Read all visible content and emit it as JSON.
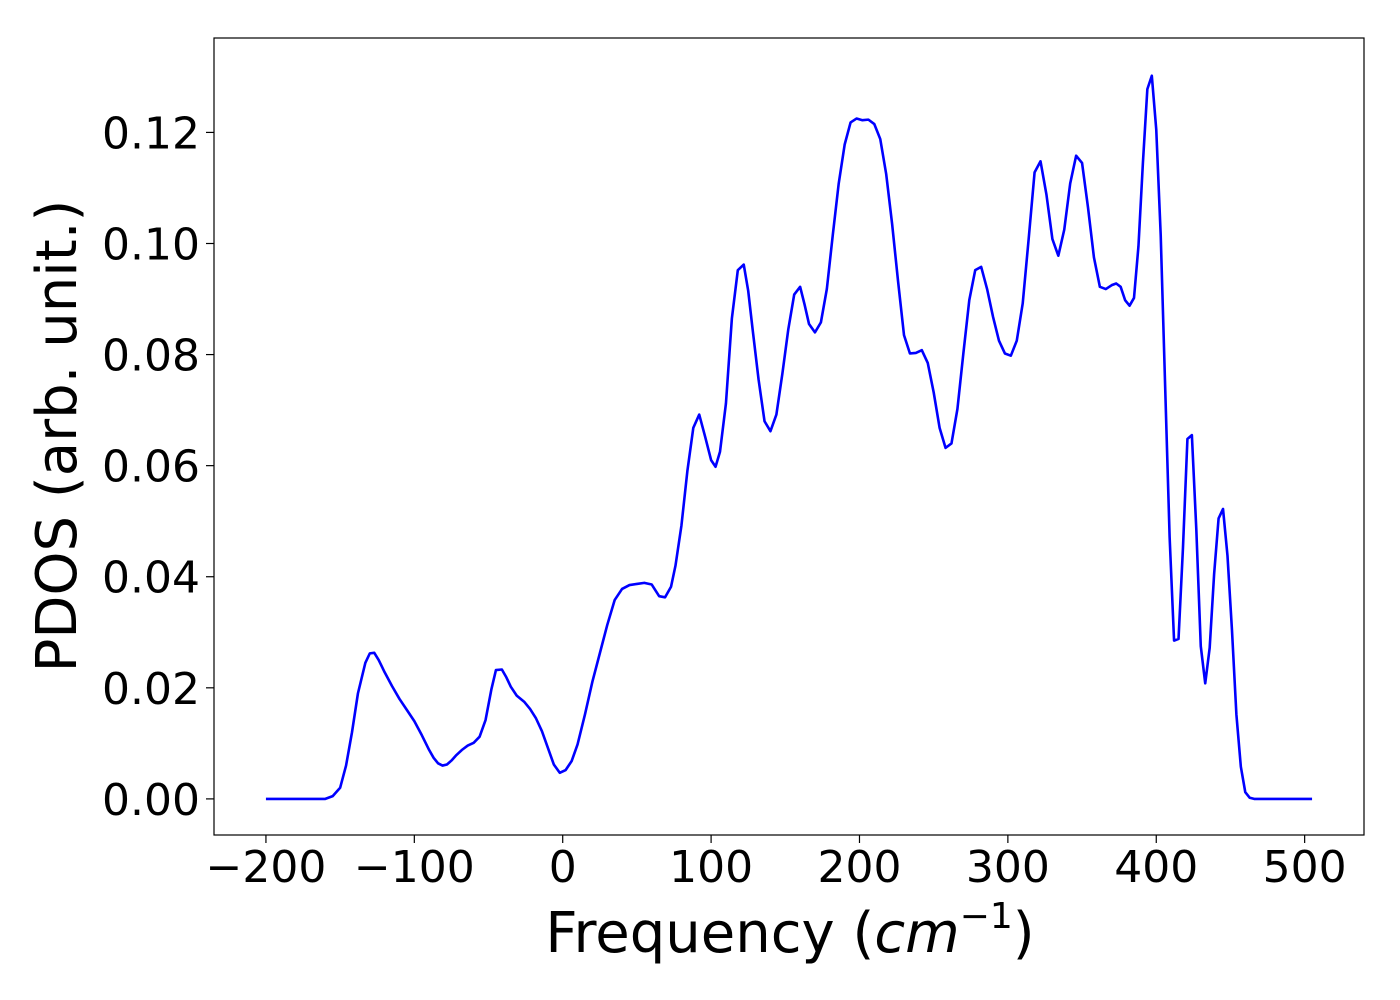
{
  "chart_data": {
    "type": "line",
    "xlabel_text": "Frequency (",
    "xlabel_unit": "cm",
    "xlabel_exp": "−1",
    "xlabel_close": ")",
    "ylabel": "PDOS (arb. unit.)",
    "xlim": [
      -235,
      540
    ],
    "ylim": [
      -0.0065,
      0.137
    ],
    "xticks": [
      -200,
      -100,
      0,
      100,
      200,
      300,
      400,
      500
    ],
    "xtick_labels": [
      "−200",
      "−100",
      "0",
      "100",
      "200",
      "300",
      "400",
      "500"
    ],
    "yticks": [
      0.0,
      0.02,
      0.04,
      0.06,
      0.08,
      0.1,
      0.12
    ],
    "ytick_labels": [
      "0.00",
      "0.02",
      "0.04",
      "0.06",
      "0.08",
      "0.10",
      "0.12"
    ],
    "grid": false,
    "series": [
      {
        "color": "#0000ff",
        "x": [
          -200,
          -160,
          -155,
          -150,
          -146,
          -142,
          -138,
          -133,
          -130,
          -127,
          -124,
          -120,
          -115,
          -110,
          -105,
          -100,
          -95,
          -90,
          -87,
          -84,
          -81,
          -78,
          -75,
          -72,
          -68,
          -64,
          -60,
          -56,
          -52,
          -48,
          -45,
          -41,
          -38,
          -35,
          -31,
          -26,
          -22,
          -18,
          -14,
          -10,
          -6,
          -2,
          2,
          6,
          10,
          15,
          20,
          25,
          30,
          35,
          40,
          45,
          50,
          55,
          60,
          65,
          69,
          73,
          76,
          80,
          84,
          88,
          92,
          96,
          100,
          103,
          106,
          110,
          114,
          118,
          122,
          125,
          128,
          132,
          136,
          140,
          144,
          148,
          152,
          156,
          160,
          163,
          166,
          170,
          174,
          178,
          182,
          186,
          190,
          194,
          198,
          202,
          206,
          210,
          214,
          218,
          222,
          226,
          230,
          234,
          238,
          242,
          246,
          250,
          254,
          258,
          262,
          266,
          270,
          274,
          278,
          282,
          286,
          290,
          294,
          298,
          302,
          306,
          310,
          314,
          318,
          322,
          326,
          330,
          334,
          338,
          342,
          346,
          350,
          354,
          358,
          362,
          366,
          370,
          373,
          376,
          379,
          382,
          385,
          388,
          391,
          394,
          397,
          400,
          403,
          406,
          409,
          412,
          415,
          418,
          421,
          424,
          427,
          430,
          433,
          436,
          439,
          442,
          445,
          448,
          451,
          454,
          457,
          460,
          463,
          466,
          470,
          480,
          505
        ],
        "y": [
          0.0,
          0.0,
          0.0005,
          0.002,
          0.006,
          0.012,
          0.019,
          0.0245,
          0.0262,
          0.0263,
          0.025,
          0.0228,
          0.0203,
          0.018,
          0.016,
          0.014,
          0.0115,
          0.0088,
          0.0074,
          0.0064,
          0.006,
          0.0062,
          0.0069,
          0.0078,
          0.0088,
          0.0096,
          0.0101,
          0.0112,
          0.0142,
          0.0198,
          0.0232,
          0.0233,
          0.0219,
          0.0202,
          0.0186,
          0.0175,
          0.0162,
          0.0145,
          0.0122,
          0.0092,
          0.0062,
          0.0047,
          0.0052,
          0.0068,
          0.0098,
          0.0152,
          0.0211,
          0.0262,
          0.0313,
          0.0358,
          0.0378,
          0.0385,
          0.0387,
          0.0389,
          0.0386,
          0.0365,
          0.0363,
          0.0382,
          0.042,
          0.0492,
          0.059,
          0.0668,
          0.0692,
          0.0652,
          0.061,
          0.0598,
          0.0625,
          0.0712,
          0.0865,
          0.0952,
          0.0962,
          0.0915,
          0.0845,
          0.0755,
          0.068,
          0.0662,
          0.0692,
          0.0765,
          0.0845,
          0.0908,
          0.0922,
          0.089,
          0.0855,
          0.084,
          0.0858,
          0.0918,
          0.1015,
          0.1108,
          0.1178,
          0.1218,
          0.1225,
          0.1222,
          0.1223,
          0.1215,
          0.1188,
          0.1125,
          0.1035,
          0.0932,
          0.0835,
          0.0802,
          0.0803,
          0.0808,
          0.0785,
          0.0732,
          0.0668,
          0.0632,
          0.064,
          0.0702,
          0.0802,
          0.0898,
          0.0952,
          0.0958,
          0.0918,
          0.0868,
          0.0825,
          0.0802,
          0.0798,
          0.0825,
          0.0892,
          0.1008,
          0.1128,
          0.1148,
          0.1088,
          0.1008,
          0.0978,
          0.1025,
          0.1108,
          0.1158,
          0.1145,
          0.1065,
          0.0975,
          0.0922,
          0.0918,
          0.0925,
          0.0928,
          0.0922,
          0.0898,
          0.0888,
          0.0902,
          0.0995,
          0.1145,
          0.1278,
          0.1302,
          0.1205,
          0.1015,
          0.0742,
          0.0472,
          0.0285,
          0.0288,
          0.0452,
          0.0648,
          0.0655,
          0.0485,
          0.0275,
          0.0208,
          0.0272,
          0.0405,
          0.0505,
          0.0522,
          0.0438,
          0.0305,
          0.0152,
          0.0058,
          0.0012,
          0.0002,
          0.0,
          0.0,
          0.0,
          0.0
        ]
      }
    ]
  }
}
